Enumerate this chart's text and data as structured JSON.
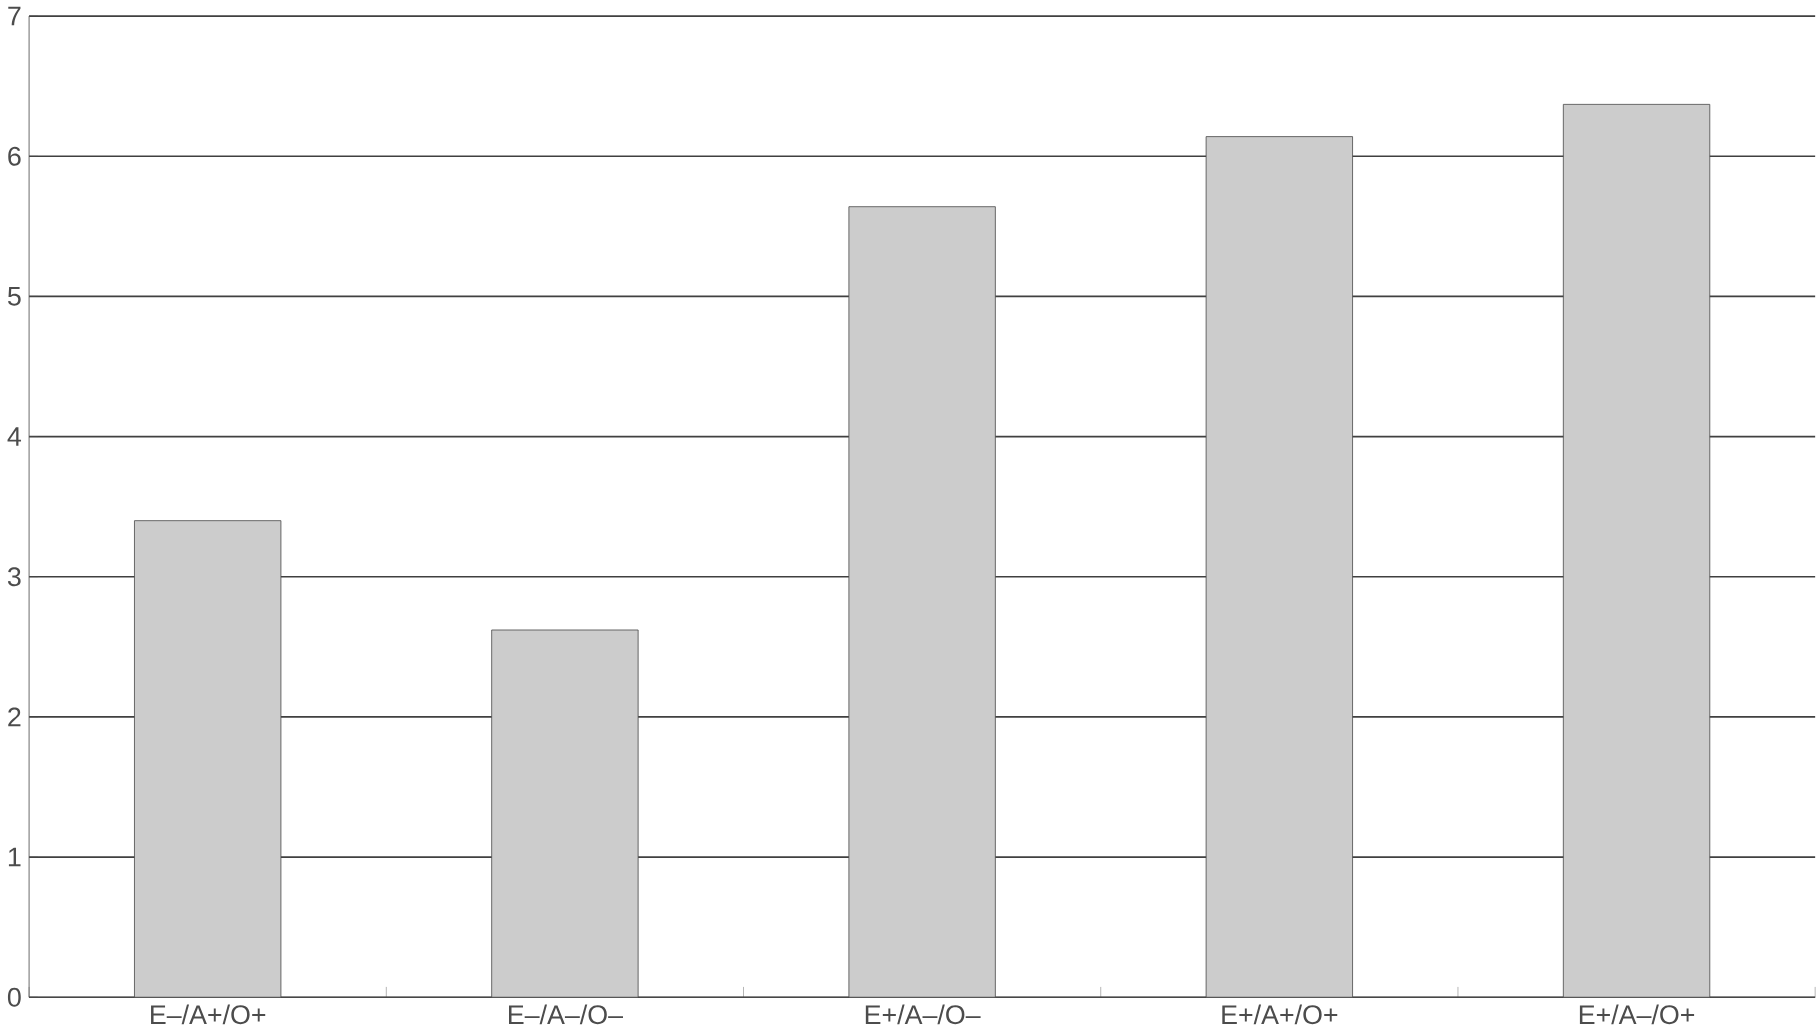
{
  "chart_data": {
    "type": "bar",
    "categories": [
      "E–/A+/O+",
      "E–/A–/O–",
      "E+/A–/O–",
      "E+/A+/O+",
      "E+/A–/O+"
    ],
    "values": [
      3.4,
      2.62,
      5.64,
      6.14,
      6.37
    ],
    "color": "#cccccc",
    "ylim": [
      0,
      7
    ],
    "yticks": [
      0,
      1,
      2,
      3,
      4,
      5,
      6,
      7
    ],
    "grid": "y"
  }
}
